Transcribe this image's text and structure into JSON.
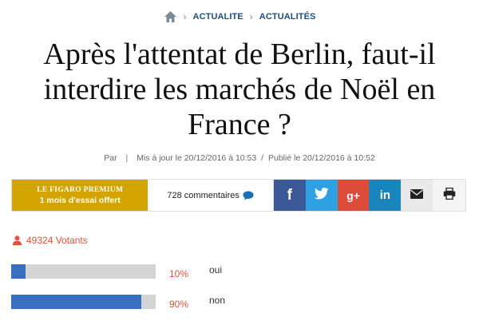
{
  "breadcrumb": {
    "items": [
      "ACTUALITE",
      "ACTUALITÉS"
    ]
  },
  "article": {
    "title": "Après l'attentat de Berlin, faut-il interdire les marchés de Noël en France ?",
    "meta": {
      "author_prefix": "Par",
      "separator": "|",
      "updated": "Mis à jour le 20/12/2016 à 10:53",
      "published": "Publié le 20/12/2016 à 10:52"
    }
  },
  "share_bar": {
    "promo_brand": "LE FIGARO",
    "promo_tier": "PREMIUM",
    "promo_offer": "1 mois d'essai offert",
    "comments_label": "728 commentaires",
    "buttons": {
      "facebook": "f",
      "googleplus": "g+",
      "linkedin": "in"
    }
  },
  "poll": {
    "votants": "49324 Votants",
    "options": [
      {
        "label": "oui",
        "percent_label": "10%",
        "fraction": 0.1
      },
      {
        "label": "non",
        "percent_label": "90%",
        "fraction": 0.9
      }
    ]
  },
  "colors": {
    "accent": "#e0533a",
    "brand_gold": "#d3a300",
    "bar_fill": "#3a6fbf",
    "facebook": "#3b5998",
    "twitter": "#2fa1e2",
    "googleplus": "#dd4b39",
    "linkedin": "#1a84bc"
  },
  "icons": [
    "home-icon",
    "chevron-right-icon",
    "comment-bubble-icon",
    "facebook-icon",
    "twitter-icon",
    "googleplus-icon",
    "linkedin-icon",
    "mail-icon",
    "print-icon",
    "user-icon"
  ]
}
